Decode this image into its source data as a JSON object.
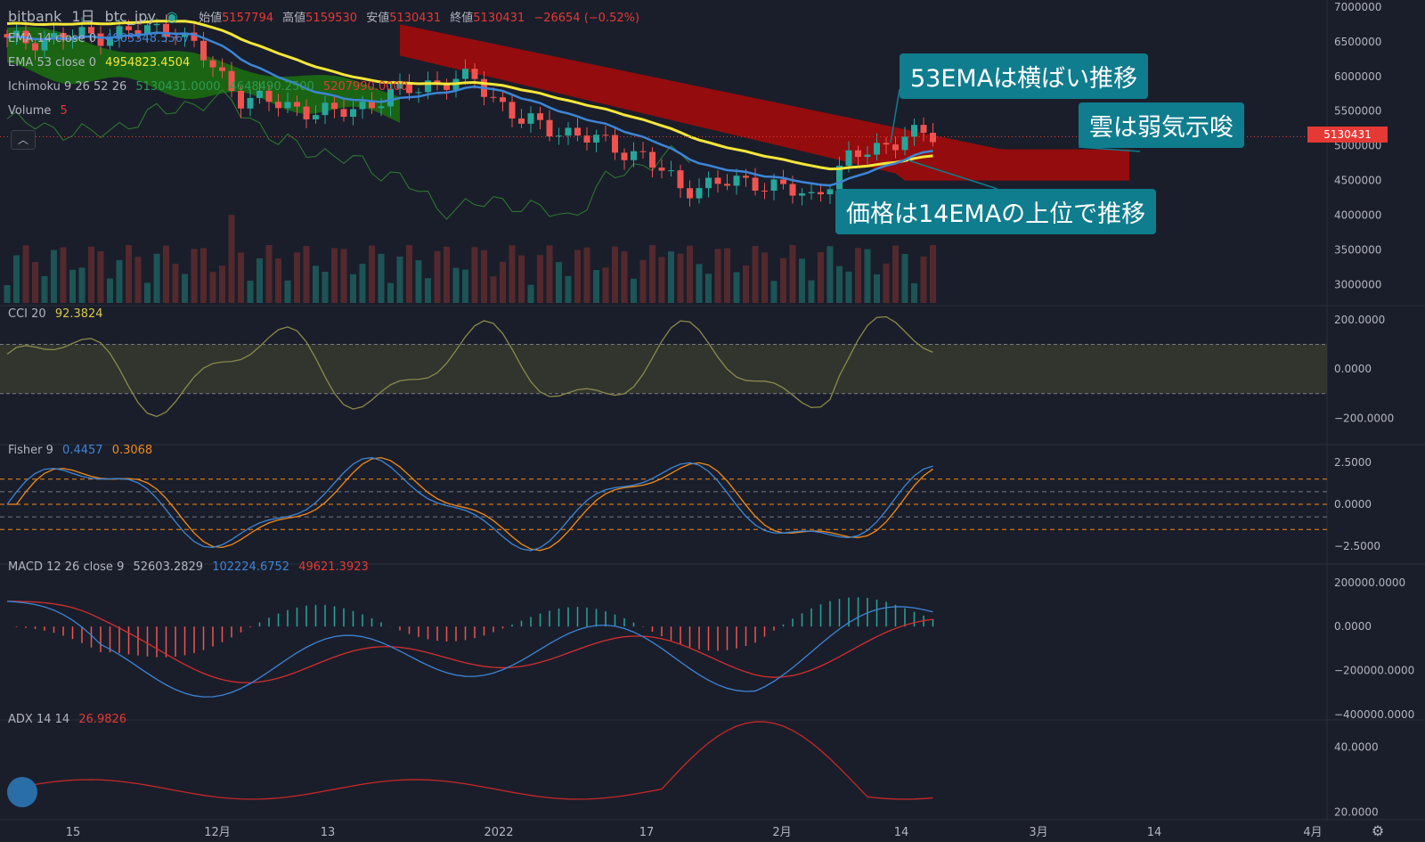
{
  "header": {
    "exchange": "bitbank",
    "interval": "1日",
    "symbol": "btc_jpy",
    "open_label": "始値",
    "open_value": "5157794",
    "high_label": "高値",
    "high_value": "5159530",
    "low_label": "安値",
    "low_value": "5130431",
    "close_label": "終値",
    "close_value": "5130431",
    "change": "−26654 (−0.52%)"
  },
  "legends": {
    "ema14": {
      "label": "EMA 14 close 0",
      "value": "4903348.5567"
    },
    "ema53": {
      "label": "EMA 53 close 0",
      "value": "4954823.4504"
    },
    "ichimoku": {
      "label": "Ichimoku 9 26 52 26",
      "v1": "5130431.0000",
      "v2": "4648490.2500",
      "v3": "5207990.0000"
    },
    "volume": {
      "label": "Volume",
      "value": "5"
    },
    "cci": {
      "label": "CCI 20",
      "value": "92.3824"
    },
    "fisher": {
      "label": "Fisher 9",
      "v1": "0.4457",
      "v2": "0.3068"
    },
    "macd": {
      "label": "MACD 12 26 close 9",
      "v1": "52603.2829",
      "v2": "102224.6752",
      "v3": "49621.3923"
    },
    "adx": {
      "label": "ADX 14 14",
      "value": "26.9826"
    }
  },
  "callouts": {
    "ema53": "53EMAは横ばい推移",
    "cloud": "雲は弱気示唆",
    "price": "価格は14EMAの上位で推移"
  },
  "price_tag": "5130431",
  "colors": {
    "background": "#1a1e2a",
    "up": "#26a69a",
    "down": "#ef5350",
    "ema14": "#3d85d6",
    "ema53": "#f5e63a",
    "cloud_bull": "#1b6b12",
    "cloud_bear": "#9b0c0c",
    "cci": "#8a8a4a",
    "fisher1": "#3d85d6",
    "fisher2": "#f08a1c",
    "macd": "#3d85d6",
    "signal": "#d32f2f",
    "adx": "#c62828"
  },
  "chart_data": [
    {
      "type": "candlestick",
      "panel": "price",
      "ylim": [
        2700000,
        7100000
      ],
      "yticks": [
        "7000000",
        "6500000",
        "6000000",
        "5500000",
        "5000000",
        "4500000",
        "4000000",
        "3500000",
        "3000000"
      ],
      "xticks": [
        "15",
        "12月",
        "13",
        "2022",
        "17",
        "2月",
        "14",
        "3月",
        "14",
        "4月"
      ],
      "ohlc_key_points": [
        {
          "o": 6550000,
          "h": 6650000,
          "l": 6400000,
          "c": 6600000
        },
        {
          "o": 5157794,
          "h": 5159530,
          "l": 5130431,
          "c": 5130431
        }
      ],
      "ema14_last": 4903348.5567,
      "ema53_last": 4954823.4504
    },
    {
      "type": "line",
      "panel": "cci",
      "name": "CCI 20",
      "ylim": [
        -300,
        250
      ],
      "yticks": [
        "200.0000",
        "0.0000",
        "−200.0000"
      ],
      "band": [
        -100,
        100
      ],
      "last": 92.3824
    },
    {
      "type": "line",
      "panel": "fisher",
      "name": "Fisher 9",
      "ylim": [
        -3.5,
        3.5
      ],
      "yticks": [
        "2.5000",
        "0.0000",
        "−2.5000"
      ],
      "levels": [
        1.5,
        0.75,
        0,
        -0.75,
        -1.5
      ],
      "last": [
        0.4457,
        0.3068
      ]
    },
    {
      "type": "line",
      "panel": "macd",
      "name": "MACD 12 26 close 9",
      "ylim": [
        -420000,
        280000
      ],
      "yticks": [
        "200000.0000",
        "0.0000",
        "−200000.0000",
        "−400000.0000"
      ],
      "last": {
        "histogram": 52603.2829,
        "macd": 102224.6752,
        "signal": 49621.3923
      }
    },
    {
      "type": "line",
      "panel": "adx",
      "name": "ADX 14 14",
      "ylim": [
        18000,
        48000
      ],
      "yticks": [
        "40.0000",
        "20.0000"
      ],
      "last": 26.9826
    }
  ]
}
